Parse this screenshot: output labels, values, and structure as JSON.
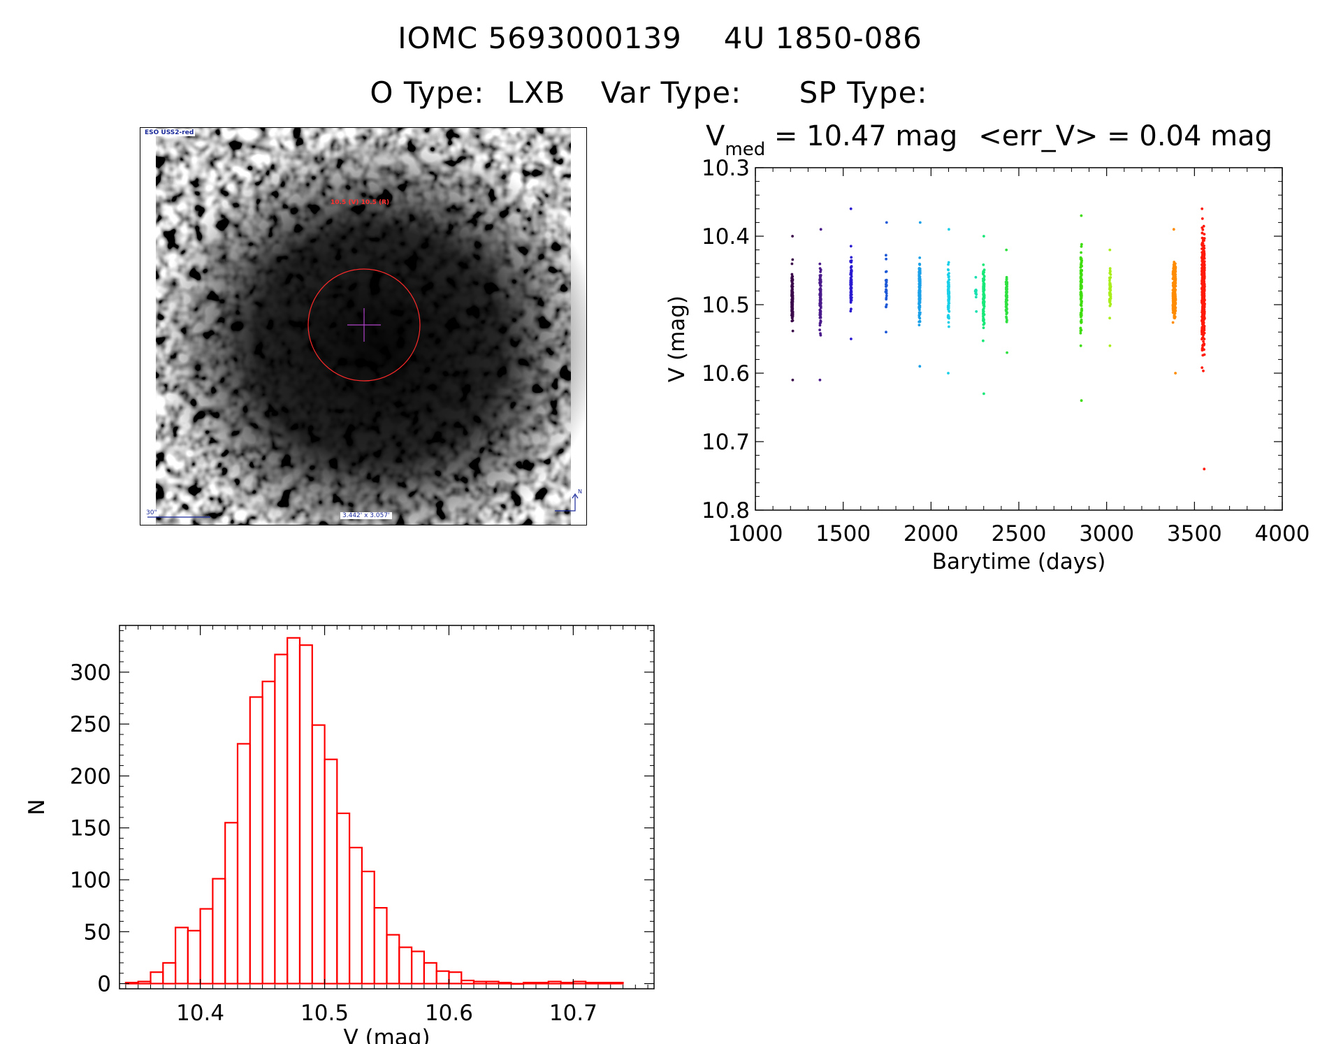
{
  "header": {
    "title_id": "IOMC 5693000139",
    "title_name": "4U 1850-086",
    "otype_label": "O Type:",
    "otype_value": "LXB",
    "vartype_label": "Var Type:",
    "vartype_value": "",
    "sptype_label": "SP Type:",
    "sptype_value": ""
  },
  "stats": {
    "vmed_symbol": "V",
    "vmed_sub": "med",
    "vmed_text": "= 10.47 mag",
    "err_text": "<err_V> = 0.04 mag"
  },
  "image": {
    "source_label": "ESO USS2-red",
    "magnitude_label": "10.5 (V) 10.5 (R)",
    "scale_label": "30\"",
    "size_label": "3.442' x 3.057'",
    "north_label": "N",
    "colors": {
      "circle": "#ff2a2a",
      "cross": "#b044c8",
      "labels": "#1a2a9a"
    }
  },
  "chart_data": [
    {
      "type": "scatter",
      "title": "",
      "xlabel": "Barytime (days)",
      "ylabel": "V (mag)",
      "xlim": [
        1000,
        4000
      ],
      "ylim": [
        10.8,
        10.3
      ],
      "y_inverted": true,
      "x_ticks": [
        1000,
        1500,
        2000,
        2500,
        3000,
        3500,
        4000
      ],
      "y_ticks": [
        "10.3",
        "10.4",
        "10.5",
        "10.6",
        "10.7",
        "10.8"
      ],
      "grid": false,
      "clusters": [
        {
          "x": 1210,
          "y_min": 10.4,
          "y_max": 10.61,
          "center": 10.49,
          "count": 110,
          "color": "#3a0a4a"
        },
        {
          "x": 1370,
          "y_min": 10.39,
          "y_max": 10.61,
          "center": 10.49,
          "count": 90,
          "color": "#4a1a8a"
        },
        {
          "x": 1545,
          "y_min": 10.36,
          "y_max": 10.55,
          "center": 10.47,
          "count": 70,
          "color": "#2a1ad0"
        },
        {
          "x": 1745,
          "y_min": 10.38,
          "y_max": 10.54,
          "center": 10.47,
          "count": 30,
          "color": "#1e5ad8"
        },
        {
          "x": 1935,
          "y_min": 10.38,
          "y_max": 10.59,
          "center": 10.48,
          "count": 130,
          "color": "#1aa0e8"
        },
        {
          "x": 2100,
          "y_min": 10.39,
          "y_max": 10.6,
          "center": 10.48,
          "count": 90,
          "color": "#1ad0e8"
        },
        {
          "x": 2255,
          "y_min": 10.46,
          "y_max": 10.51,
          "center": 10.48,
          "count": 12,
          "color": "#18e0b0"
        },
        {
          "x": 2300,
          "y_min": 10.4,
          "y_max": 10.63,
          "center": 10.49,
          "count": 110,
          "color": "#18e878"
        },
        {
          "x": 2430,
          "y_min": 10.42,
          "y_max": 10.57,
          "center": 10.49,
          "count": 70,
          "color": "#30e040"
        },
        {
          "x": 2855,
          "y_min": 10.37,
          "y_max": 10.64,
          "center": 10.48,
          "count": 110,
          "color": "#40dd10"
        },
        {
          "x": 3020,
          "y_min": 10.42,
          "y_max": 10.56,
          "center": 10.48,
          "count": 60,
          "color": "#a8ee18"
        },
        {
          "x": 3385,
          "y_min": 10.39,
          "y_max": 10.6,
          "center": 10.48,
          "count": 220,
          "color": "#ff8c00"
        },
        {
          "x": 3550,
          "y_min": 10.36,
          "y_max": 10.74,
          "center": 10.48,
          "count": 420,
          "color": "#ff1a0a"
        }
      ]
    },
    {
      "type": "bar",
      "title": "",
      "xlabel": "V (mag)",
      "ylabel": "N",
      "xlim": [
        10.335,
        10.765
      ],
      "ylim": [
        -5,
        345
      ],
      "x_ticks": [
        "10.4",
        "10.5",
        "10.6",
        "10.7"
      ],
      "y_ticks": [
        0,
        50,
        100,
        150,
        200,
        250,
        300
      ],
      "bin_width": 0.01,
      "bin_starts": [
        10.34,
        10.35,
        10.36,
        10.37,
        10.38,
        10.39,
        10.4,
        10.41,
        10.42,
        10.43,
        10.44,
        10.45,
        10.46,
        10.47,
        10.48,
        10.49,
        10.5,
        10.51,
        10.52,
        10.53,
        10.54,
        10.55,
        10.56,
        10.57,
        10.58,
        10.59,
        10.6,
        10.61,
        10.62,
        10.63,
        10.64,
        10.65,
        10.66,
        10.67,
        10.68,
        10.69,
        10.7,
        10.71,
        10.72,
        10.73
      ],
      "values": [
        1,
        2,
        11,
        20,
        54,
        51,
        72,
        101,
        155,
        231,
        276,
        291,
        317,
        333,
        326,
        249,
        216,
        164,
        131,
        108,
        73,
        47,
        35,
        31,
        20,
        12,
        11,
        3,
        2,
        2,
        1,
        0,
        1,
        1,
        2,
        1,
        2,
        1,
        1,
        1
      ],
      "color": "#ff0000"
    }
  ]
}
